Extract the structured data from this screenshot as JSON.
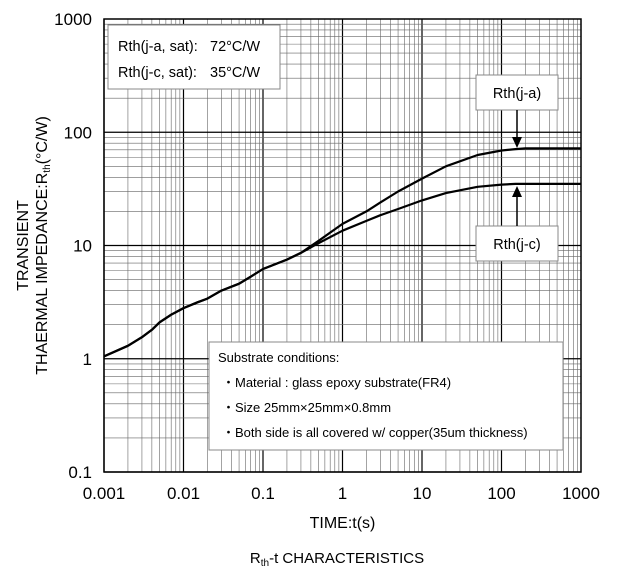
{
  "chart_data": {
    "type": "line",
    "title": "",
    "caption_main": "R",
    "caption_sub": "th",
    "caption_rest": "-t CHARACTERISTICS",
    "xlabel": "TIME:t(s)",
    "ylabel_line1": "TRANSIENT",
    "ylabel_line2_main": "THAERMAL IMPEDANCE:R",
    "ylabel_line2_sub": "th",
    "ylabel_line2_rest": "(°C/W)",
    "x_scale": "log",
    "y_scale": "log",
    "xlim": [
      0.001,
      1000
    ],
    "ylim": [
      0.1,
      1000
    ],
    "grid": true,
    "x_tick_labels": [
      "0.001",
      "0.01",
      "0.1",
      "1",
      "10",
      "100",
      "1000"
    ],
    "y_tick_labels": [
      "0.1",
      "1",
      "10",
      "100",
      "1000"
    ],
    "series": [
      {
        "name": "Rth(j-a)",
        "color": "#000000",
        "x": [
          0.001,
          0.002,
          0.003,
          0.004,
          0.005,
          0.007,
          0.01,
          0.015,
          0.02,
          0.03,
          0.05,
          0.07,
          0.1,
          0.2,
          0.3,
          0.5,
          1,
          2,
          3,
          5,
          10,
          20,
          50,
          100,
          150,
          200,
          300,
          500,
          1000
        ],
        "y": [
          1.05,
          1.3,
          1.55,
          1.8,
          2.1,
          2.45,
          2.8,
          3.15,
          3.4,
          4.0,
          4.6,
          5.3,
          6.2,
          7.5,
          8.6,
          11.0,
          15.5,
          20.0,
          24.0,
          30.0,
          39.0,
          50.0,
          63.0,
          69.0,
          71.0,
          72.0,
          72.0,
          72.0,
          72.0
        ]
      },
      {
        "name": "Rth(j-c)",
        "color": "#000000",
        "x": [
          0.001,
          0.002,
          0.003,
          0.004,
          0.005,
          0.007,
          0.01,
          0.015,
          0.02,
          0.03,
          0.05,
          0.07,
          0.1,
          0.2,
          0.3,
          0.5,
          1,
          2,
          3,
          5,
          10,
          20,
          50,
          100,
          150,
          200,
          300,
          500,
          1000
        ],
        "y": [
          1.05,
          1.3,
          1.55,
          1.8,
          2.1,
          2.45,
          2.8,
          3.15,
          3.4,
          4.0,
          4.6,
          5.3,
          6.2,
          7.5,
          8.6,
          10.5,
          13.5,
          16.5,
          18.5,
          21.0,
          25.0,
          29.0,
          33.0,
          34.5,
          35.0,
          35.0,
          35.0,
          35.0,
          35.0
        ]
      }
    ],
    "legend_box": {
      "line1_label": "Rth(j-a, sat):",
      "line1_value": "72°C/W",
      "line2_label": "Rth(j-c, sat):",
      "line2_value": "35°C/W"
    },
    "annotations": [
      {
        "text": "Rth(j-a)",
        "points_to": "Rth(j-a)"
      },
      {
        "text": "Rth(j-c)",
        "points_to": "Rth(j-c)"
      }
    ],
    "notes": {
      "title": "Substrate conditions:",
      "items": [
        "Material : glass epoxy substrate(FR4)",
        "Size 25mm×25mm×0.8mm",
        "Both side is all covered w/ copper(35um thickness)"
      ]
    }
  }
}
